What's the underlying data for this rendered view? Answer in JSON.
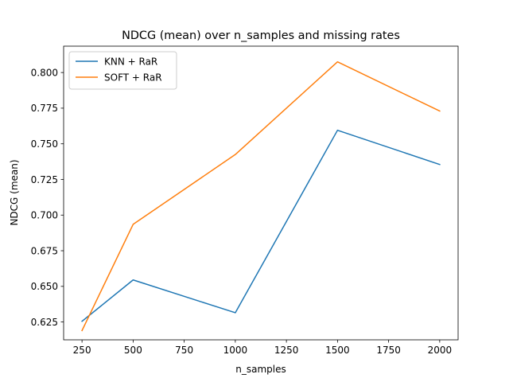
{
  "chart_data": {
    "type": "line",
    "title": "NDCG (mean) over n_samples and missing rates",
    "xlabel": "n_samples",
    "ylabel": "NDCG (mean)",
    "xlim": [
      160,
      2090
    ],
    "ylim": [
      0.6125,
      0.8185
    ],
    "xticks": [
      250,
      500,
      750,
      1000,
      1250,
      1500,
      1750,
      2000
    ],
    "xtick_labels": [
      "250",
      "500",
      "750",
      "1000",
      "1250",
      "1500",
      "1750",
      "2000"
    ],
    "yticks": [
      0.625,
      0.65,
      0.675,
      0.7,
      0.725,
      0.75,
      0.775,
      0.8
    ],
    "ytick_labels": [
      "0.625",
      "0.650",
      "0.675",
      "0.700",
      "0.725",
      "0.750",
      "0.775",
      "0.800"
    ],
    "grid": false,
    "legend_position": "top-left",
    "x": [
      250,
      500,
      1000,
      1500,
      2000
    ],
    "series": [
      {
        "name": "KNN + RaR",
        "color": "#1f77b4",
        "values": [
          0.6255,
          0.6545,
          0.6315,
          0.7595,
          0.7355
        ]
      },
      {
        "name": "SOFT + RaR",
        "color": "#ff7f0e",
        "values": [
          0.619,
          0.6935,
          0.7425,
          0.8075,
          0.773
        ]
      }
    ]
  }
}
